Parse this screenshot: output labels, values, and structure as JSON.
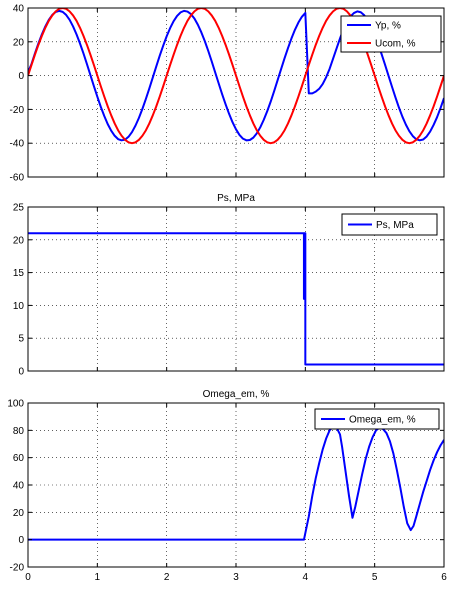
{
  "chart_data": [
    {
      "type": "line",
      "title": "",
      "xlim": [
        0,
        6
      ],
      "ylim": [
        -60,
        40
      ],
      "xticks": [
        0,
        1,
        2,
        3,
        4,
        5,
        6
      ],
      "yticks": [
        -60,
        -40,
        -20,
        0,
        20,
        40
      ],
      "grid": true,
      "legend_position": "top-right",
      "series": [
        {
          "name": "Yp, %",
          "color": "#0000ff",
          "x": [
            0,
            0.05,
            0.1,
            0.15,
            0.2,
            0.25,
            0.3,
            0.35,
            0.4,
            0.45,
            0.5,
            0.55,
            0.6,
            0.65,
            0.7,
            0.75,
            0.8,
            0.85,
            0.9,
            0.95,
            1,
            1.05,
            1.1,
            1.15,
            1.2,
            1.25,
            1.3,
            1.35,
            1.4,
            1.45,
            1.5,
            1.55,
            1.6,
            1.65,
            1.7,
            1.75,
            1.8,
            1.85,
            1.9,
            1.95,
            2,
            2.05,
            2.1,
            2.15,
            2.2,
            2.25,
            2.3,
            2.35,
            2.4,
            2.45,
            2.5,
            2.55,
            2.6,
            2.65,
            2.7,
            2.75,
            2.8,
            2.85,
            2.9,
            2.95,
            3,
            3.05,
            3.1,
            3.15,
            3.2,
            3.25,
            3.3,
            3.35,
            3.4,
            3.45,
            3.5,
            3.55,
            3.6,
            3.65,
            3.7,
            3.75,
            3.8,
            3.85,
            3.9,
            3.95,
            4,
            4.05,
            4.1,
            4.15,
            4.2,
            4.25,
            4.3,
            4.35,
            4.4,
            4.45,
            4.5,
            4.55,
            4.6,
            4.65,
            4.7,
            4.75,
            4.8,
            4.85,
            4.9,
            4.95,
            5,
            5.05,
            5.1,
            5.15,
            5.2,
            5.25,
            5.3,
            5.35,
            5.4,
            5.45,
            5.5,
            5.55,
            5.6,
            5.65,
            5.7,
            5.75,
            5.8,
            5.85,
            5.9,
            5.95,
            6
          ],
          "y": [
            2,
            6.8,
            13.1,
            19,
            24.4,
            29.1,
            33,
            35.9,
            37.7,
            38.3,
            37.7,
            35.9,
            33,
            29.1,
            24.4,
            19,
            13.1,
            6.8,
            0.3,
            -6.2,
            -12.5,
            -18.5,
            -23.9,
            -28.7,
            -32.6,
            -35.6,
            -37.6,
            -38.3,
            -37.9,
            -36.2,
            -33.4,
            -29.6,
            -25,
            -19.7,
            -13.8,
            -7.6,
            -1.1,
            5.4,
            11.8,
            17.7,
            23.3,
            28.1,
            32.2,
            35.3,
            37.4,
            38.3,
            37.9,
            36.4,
            33.8,
            30.1,
            25.6,
            20.4,
            14.6,
            8.4,
            1.9,
            -4.6,
            -11,
            -17,
            -22.6,
            -27.6,
            -31.8,
            -35.1,
            -37.3,
            -38.3,
            -38.1,
            -36.7,
            -34.2,
            -30.6,
            -26.2,
            -21.1,
            -15.4,
            -9.2,
            -2.7,
            3.8,
            10.2,
            16.3,
            22,
            27.1,
            31.4,
            34.8,
            37.1,
            -10.5,
            -10.5,
            -9.5,
            -7.8,
            -5,
            -1,
            4,
            10,
            16,
            22,
            27.5,
            32,
            35,
            37,
            38,
            37.5,
            35.7,
            32.8,
            28.8,
            24.1,
            18.6,
            12.7,
            6.4,
            -0.1,
            -6.6,
            -12.9,
            -18.9,
            -24.3,
            -29,
            -32.9,
            -35.8,
            -37.7,
            -38.3,
            -37.8,
            -36,
            -33.1,
            -29.2,
            -24.6,
            -19.2,
            -13.3
          ]
        },
        {
          "name": "Ucom, %",
          "color": "#ff0000",
          "x": [
            0,
            0.05,
            0.1,
            0.15,
            0.2,
            0.25,
            0.3,
            0.35,
            0.4,
            0.45,
            0.5,
            0.55,
            0.6,
            0.65,
            0.7,
            0.75,
            0.8,
            0.85,
            0.9,
            0.95,
            1,
            1.05,
            1.1,
            1.15,
            1.2,
            1.25,
            1.3,
            1.35,
            1.4,
            1.45,
            1.5,
            1.55,
            1.6,
            1.65,
            1.7,
            1.75,
            1.8,
            1.85,
            1.9,
            1.95,
            2,
            2.05,
            2.1,
            2.15,
            2.2,
            2.25,
            2.3,
            2.35,
            2.4,
            2.45,
            2.5,
            2.55,
            2.6,
            2.65,
            2.7,
            2.75,
            2.8,
            2.85,
            2.9,
            2.95,
            3,
            3.05,
            3.1,
            3.15,
            3.2,
            3.25,
            3.3,
            3.35,
            3.4,
            3.45,
            3.5,
            3.55,
            3.6,
            3.65,
            3.7,
            3.75,
            3.8,
            3.85,
            3.9,
            3.95,
            4,
            4.05,
            4.1,
            4.15,
            4.2,
            4.25,
            4.3,
            4.35,
            4.4,
            4.45,
            4.5,
            4.55,
            4.6,
            4.65,
            4.7,
            4.75,
            4.8,
            4.85,
            4.9,
            4.95,
            5,
            5.05,
            5.1,
            5.15,
            5.2,
            5.25,
            5.3,
            5.35,
            5.4,
            5.45,
            5.5,
            5.55,
            5.6,
            5.65,
            5.7,
            5.75,
            5.8,
            5.85,
            5.9,
            5.95,
            6
          ],
          "y": [
            0,
            6.2,
            12.4,
            18.2,
            23.5,
            28.3,
            32.4,
            35.6,
            38,
            39.5,
            40,
            39.5,
            38,
            35.6,
            32.4,
            28.3,
            23.5,
            18.2,
            12.4,
            6.3,
            0,
            -6.3,
            -12.4,
            -18.2,
            -23.5,
            -28.3,
            -32.4,
            -35.6,
            -38,
            -39.5,
            -40,
            -39.5,
            -38,
            -35.6,
            -32.4,
            -28.3,
            -23.5,
            -18.2,
            -12.4,
            -6.3,
            0,
            6.3,
            12.4,
            18.2,
            23.5,
            28.3,
            32.4,
            35.6,
            38,
            39.5,
            40,
            39.5,
            38,
            35.6,
            32.4,
            28.3,
            23.5,
            18.2,
            12.4,
            6.3,
            0,
            -6.3,
            -12.4,
            -18.2,
            -23.5,
            -28.3,
            -32.4,
            -35.6,
            -38,
            -39.5,
            -40,
            -39.5,
            -38,
            -35.6,
            -32.4,
            -28.3,
            -23.5,
            -18.2,
            -12.4,
            -6.3,
            0,
            6.3,
            12.4,
            18.2,
            23.5,
            28.3,
            32.4,
            35.6,
            38,
            39.5,
            40,
            39.5,
            38,
            35.6,
            32.4,
            28.3,
            23.5,
            18.2,
            12.4,
            6.3,
            0,
            -6.3,
            -12.4,
            -18.2,
            -23.5,
            -28.3,
            -32.4,
            -35.6,
            -38,
            -39.5,
            -40,
            -39.5,
            -38,
            -35.6,
            -32.4,
            -28.3,
            -23.5,
            -18.2,
            -12.4,
            -6.3,
            0
          ]
        }
      ]
    },
    {
      "type": "line",
      "title": "Ps, MPa",
      "xlim": [
        0,
        6
      ],
      "ylim": [
        0,
        25
      ],
      "xticks": [
        0,
        1,
        2,
        3,
        4,
        5,
        6
      ],
      "yticks": [
        0,
        5,
        10,
        15,
        20,
        25
      ],
      "grid": true,
      "legend_position": "top-right",
      "series": [
        {
          "name": "Ps, MPa",
          "color": "#0000ff",
          "x": [
            0,
            3.98,
            3.98,
            3.99,
            3.99,
            4.0,
            4.0,
            6
          ],
          "y": [
            21,
            21,
            11,
            11,
            21,
            21,
            1,
            1
          ]
        }
      ]
    },
    {
      "type": "line",
      "title": "Omega_em, %",
      "xlim": [
        0,
        6
      ],
      "ylim": [
        -20,
        100
      ],
      "xticks": [
        0,
        1,
        2,
        3,
        4,
        5,
        6
      ],
      "yticks": [
        -20,
        0,
        20,
        40,
        60,
        80,
        100
      ],
      "grid": true,
      "legend_position": "top-right",
      "series": [
        {
          "name": "Omega_em, %",
          "color": "#0000ff",
          "x": [
            0,
            3.98,
            4.05,
            4.1,
            4.15,
            4.2,
            4.25,
            4.3,
            4.35,
            4.4,
            4.45,
            4.5,
            4.53,
            4.58,
            4.63,
            4.68,
            4.72,
            4.77,
            4.82,
            4.87,
            4.92,
            4.97,
            5.02,
            5.07,
            5.12,
            5.17,
            5.22,
            5.27,
            5.32,
            5.37,
            5.42,
            5.47,
            5.52,
            5.56,
            5.6,
            5.65,
            5.7,
            5.75,
            5.8,
            5.85,
            5.9,
            5.95,
            6
          ],
          "y": [
            0,
            0,
            17,
            32,
            45,
            56,
            66,
            74,
            80,
            83,
            82,
            77,
            68,
            50,
            32,
            16,
            24,
            36,
            48,
            59,
            68,
            75,
            80,
            82,
            81,
            78,
            72,
            63,
            51,
            38,
            24,
            12,
            7,
            10,
            17,
            26,
            35,
            43,
            51,
            58,
            64,
            69,
            73
          ]
        }
      ]
    }
  ]
}
